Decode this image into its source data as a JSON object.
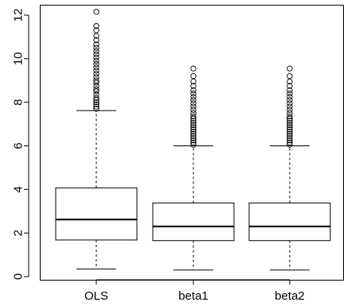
{
  "chart_data": {
    "type": "boxplot",
    "title": "",
    "xlabel": "",
    "ylabel": "",
    "ylim": [
      0,
      12.2
    ],
    "yticks": [
      0,
      2,
      4,
      6,
      8,
      10,
      12
    ],
    "categories": [
      "OLS",
      "beta1",
      "beta2"
    ],
    "boxes": [
      {
        "name": "OLS",
        "whisker_low": 0.35,
        "q1": 1.68,
        "median": 2.62,
        "q3": 4.07,
        "whisker_high": 7.62,
        "outliers": [
          7.7,
          7.8,
          7.9,
          8.0,
          8.1,
          8.2,
          8.35,
          8.5,
          8.6,
          8.75,
          8.9,
          9.0,
          9.15,
          9.3,
          9.45,
          9.6,
          9.75,
          9.9,
          10.05,
          10.2,
          10.35,
          10.5,
          10.65,
          10.85,
          11.05,
          11.3,
          11.5,
          12.15
        ]
      },
      {
        "name": "beta1",
        "whisker_low": 0.3,
        "q1": 1.65,
        "median": 2.3,
        "q3": 3.38,
        "whisker_high": 6.0,
        "outliers": [
          6.05,
          6.15,
          6.25,
          6.35,
          6.45,
          6.55,
          6.65,
          6.75,
          6.85,
          6.95,
          7.05,
          7.15,
          7.25,
          7.35,
          7.5,
          7.65,
          7.8,
          7.95,
          8.1,
          8.25,
          8.4,
          8.55,
          8.75,
          8.95,
          9.2,
          9.55
        ]
      },
      {
        "name": "beta2",
        "whisker_low": 0.3,
        "q1": 1.65,
        "median": 2.3,
        "q3": 3.38,
        "whisker_high": 6.0,
        "outliers": [
          6.05,
          6.15,
          6.25,
          6.35,
          6.45,
          6.55,
          6.65,
          6.75,
          6.85,
          6.95,
          7.05,
          7.15,
          7.25,
          7.35,
          7.5,
          7.65,
          7.8,
          7.95,
          8.1,
          8.25,
          8.4,
          8.55,
          8.75,
          8.95,
          9.2,
          9.55
        ]
      }
    ]
  }
}
